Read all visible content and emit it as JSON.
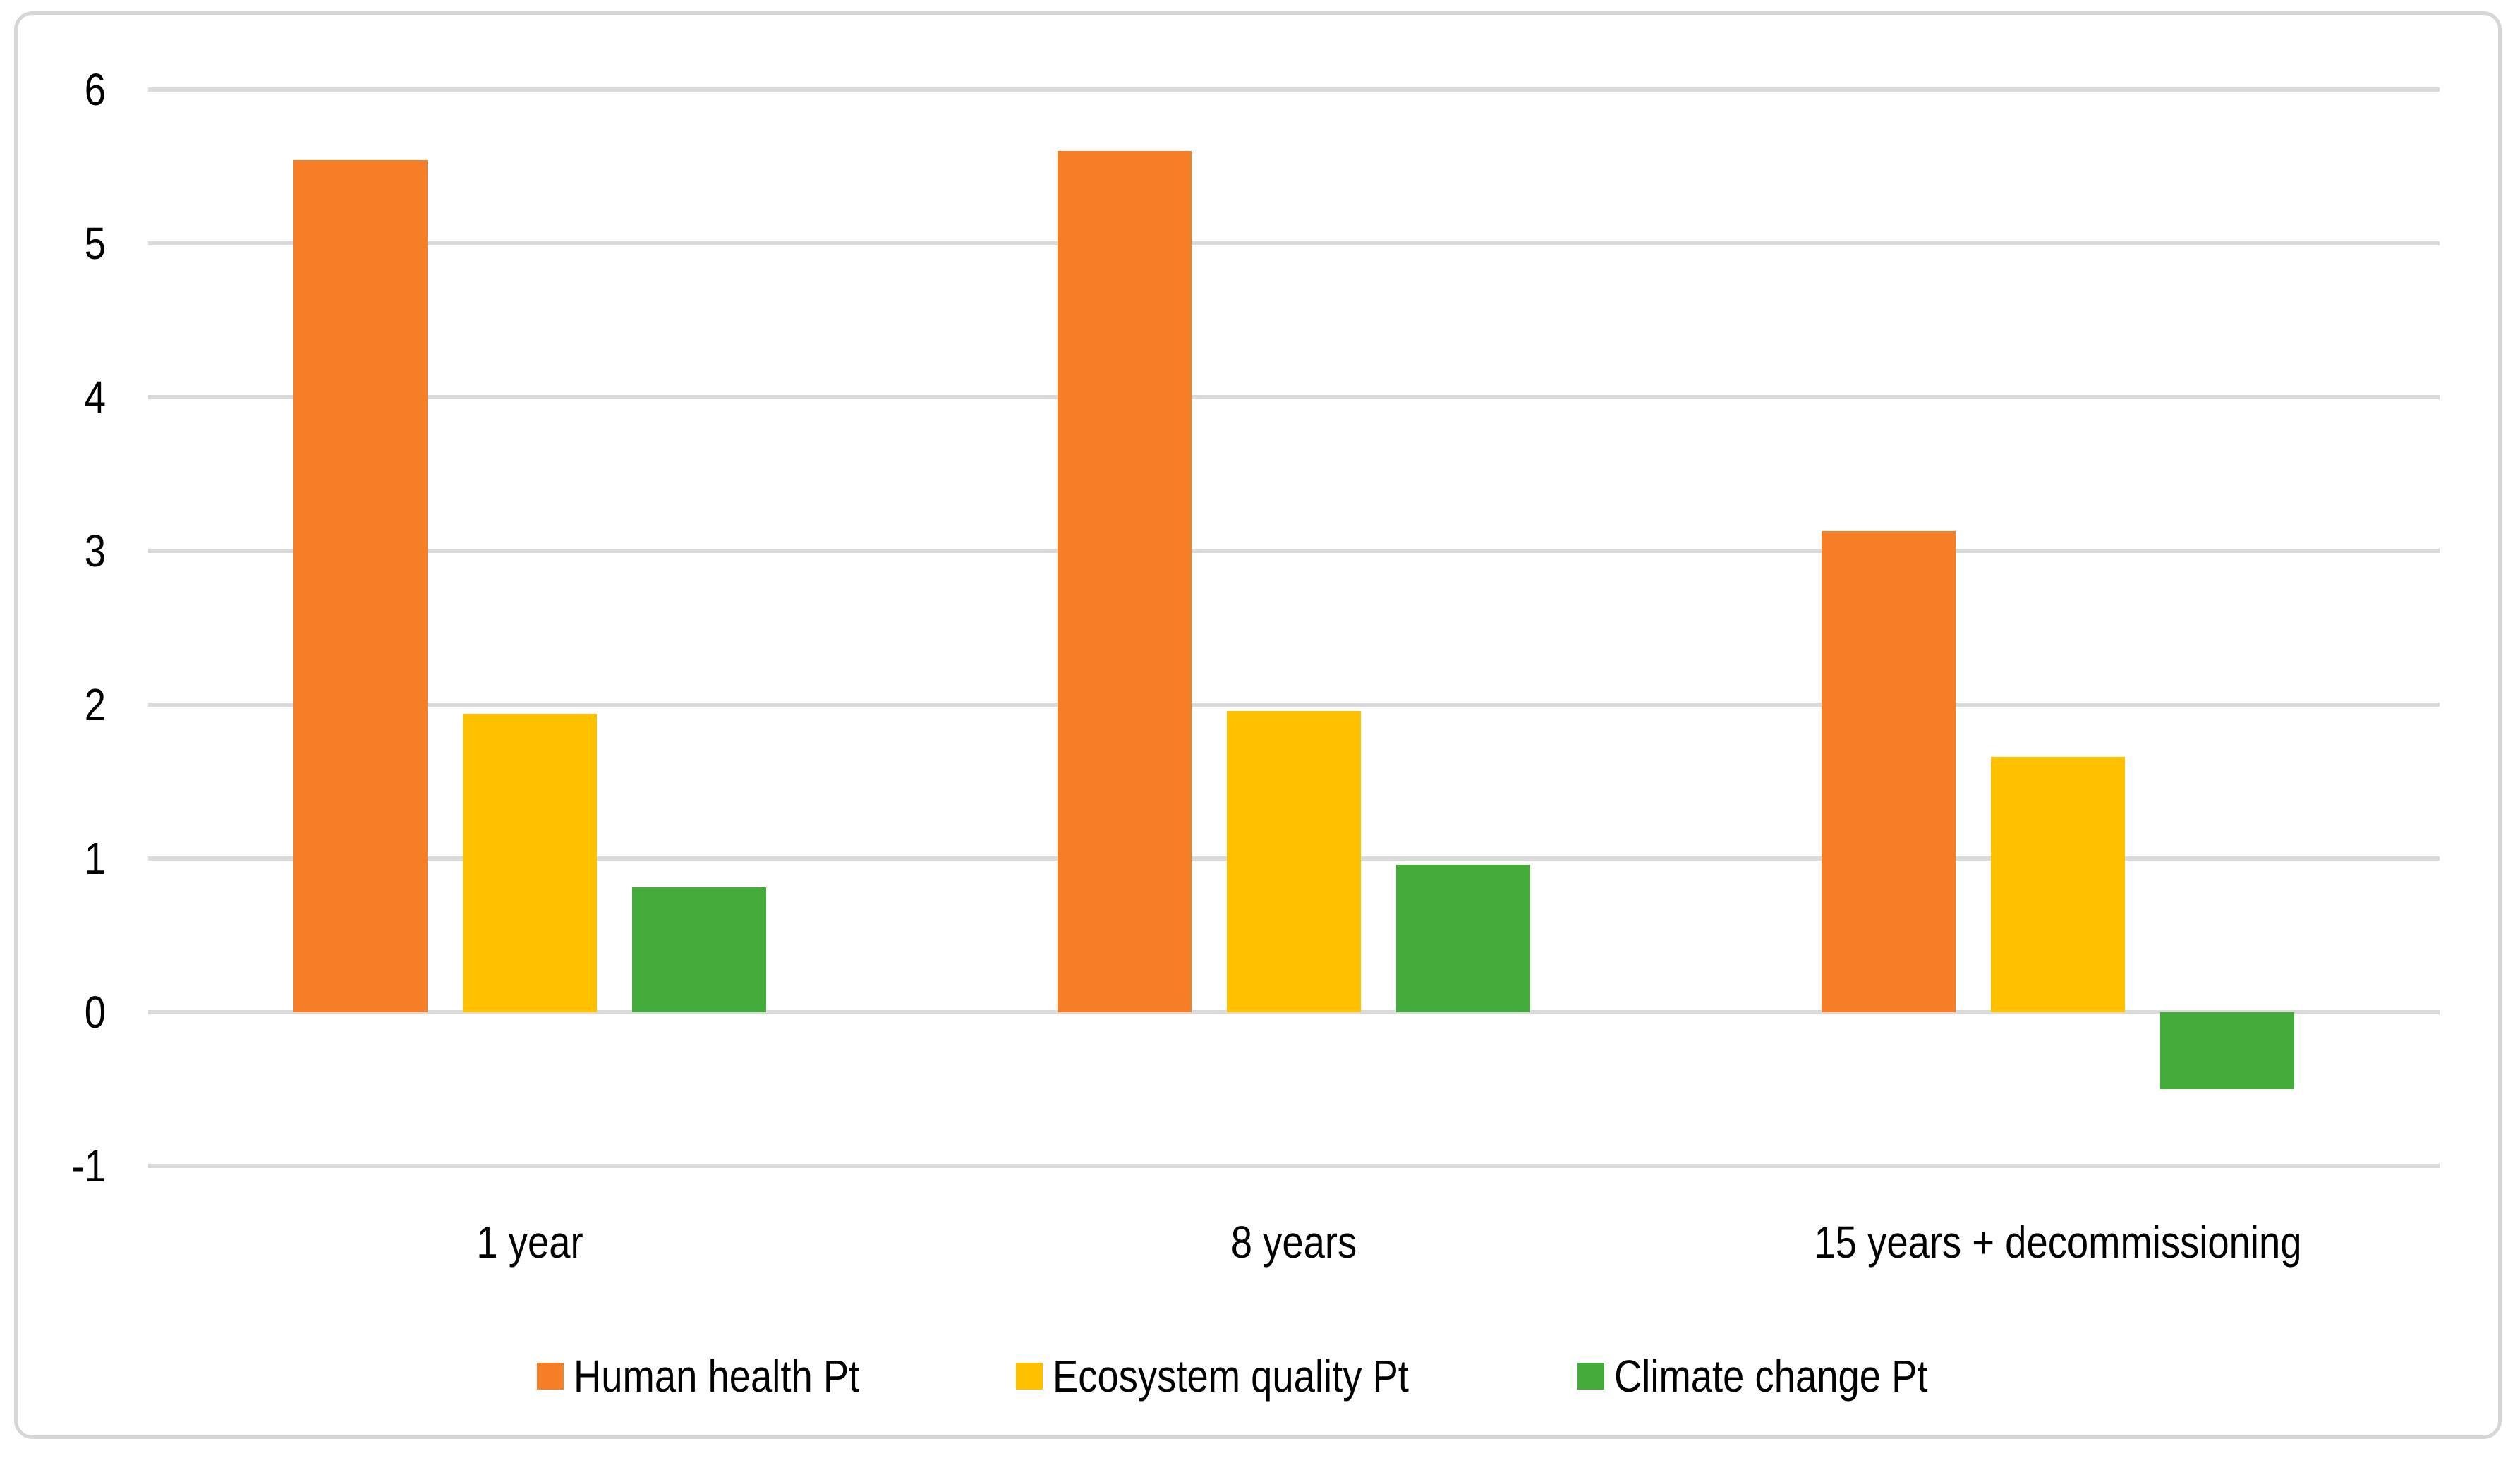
{
  "chart_data": {
    "type": "bar",
    "title": "",
    "xlabel": "",
    "ylabel": "",
    "categories": [
      "1 year",
      "8 years",
      "15 years + decommissioning"
    ],
    "series": [
      {
        "name": "Human health Pt",
        "color": "#F57E27",
        "values": [
          5.54,
          5.6,
          3.13
        ]
      },
      {
        "name": "Ecosystem quality Pt",
        "color": "#FFC000",
        "values": [
          1.94,
          1.96,
          1.66
        ]
      },
      {
        "name": "Climate change Pt",
        "color": "#44AC3A",
        "values": [
          0.81,
          0.96,
          -0.5
        ]
      }
    ],
    "ylim": [
      -1,
      6
    ],
    "yticks": [
      6,
      5,
      4,
      3,
      2,
      1,
      0,
      -1
    ],
    "grid": true,
    "legend_position": "bottom"
  },
  "colors": {
    "background": "#FFFFFF",
    "gridline": "#DADADA",
    "frame_border": "#D6D6D6",
    "text": "#000000"
  }
}
